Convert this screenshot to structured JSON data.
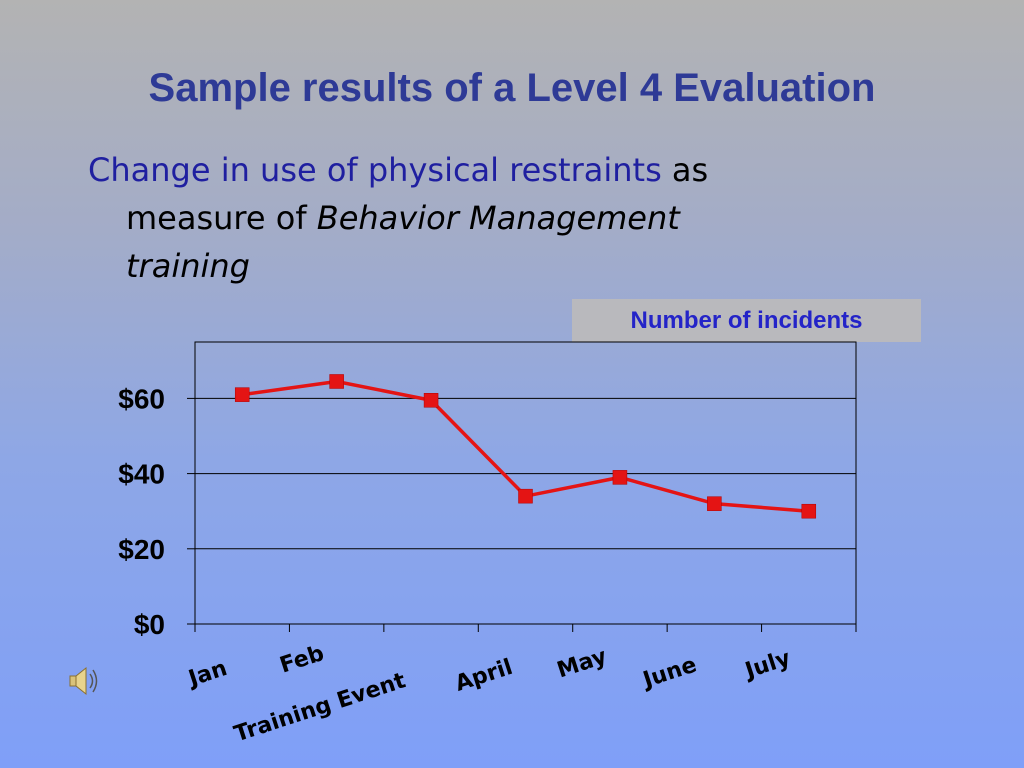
{
  "slide": {
    "title": "Sample results of a Level 4 Evaluation",
    "subtitle_blue": "Change in use of physical restraints",
    "subtitle_as": " as",
    "subtitle_measure_of": "measure of ",
    "subtitle_italic": "Behavior Management",
    "subtitle_training": "training"
  },
  "icons": {
    "speaker": "speaker-icon"
  },
  "colors": {
    "series": "#e41414",
    "title": "#2e3a96"
  },
  "chart_data": {
    "type": "line",
    "title": "",
    "legend": [
      "Number of incidents"
    ],
    "legend_placement": "top-right",
    "categories": [
      "Jan",
      "Feb",
      "Training Event",
      "April",
      "May",
      "June",
      "July"
    ],
    "series": [
      {
        "name": "Number of incidents",
        "values": [
          61,
          64.5,
          59.5,
          34,
          39,
          32,
          30
        ]
      }
    ],
    "yticks": [
      "$0",
      "$20",
      "$40",
      "$60"
    ],
    "ylim": [
      0,
      75
    ],
    "grid": true
  }
}
